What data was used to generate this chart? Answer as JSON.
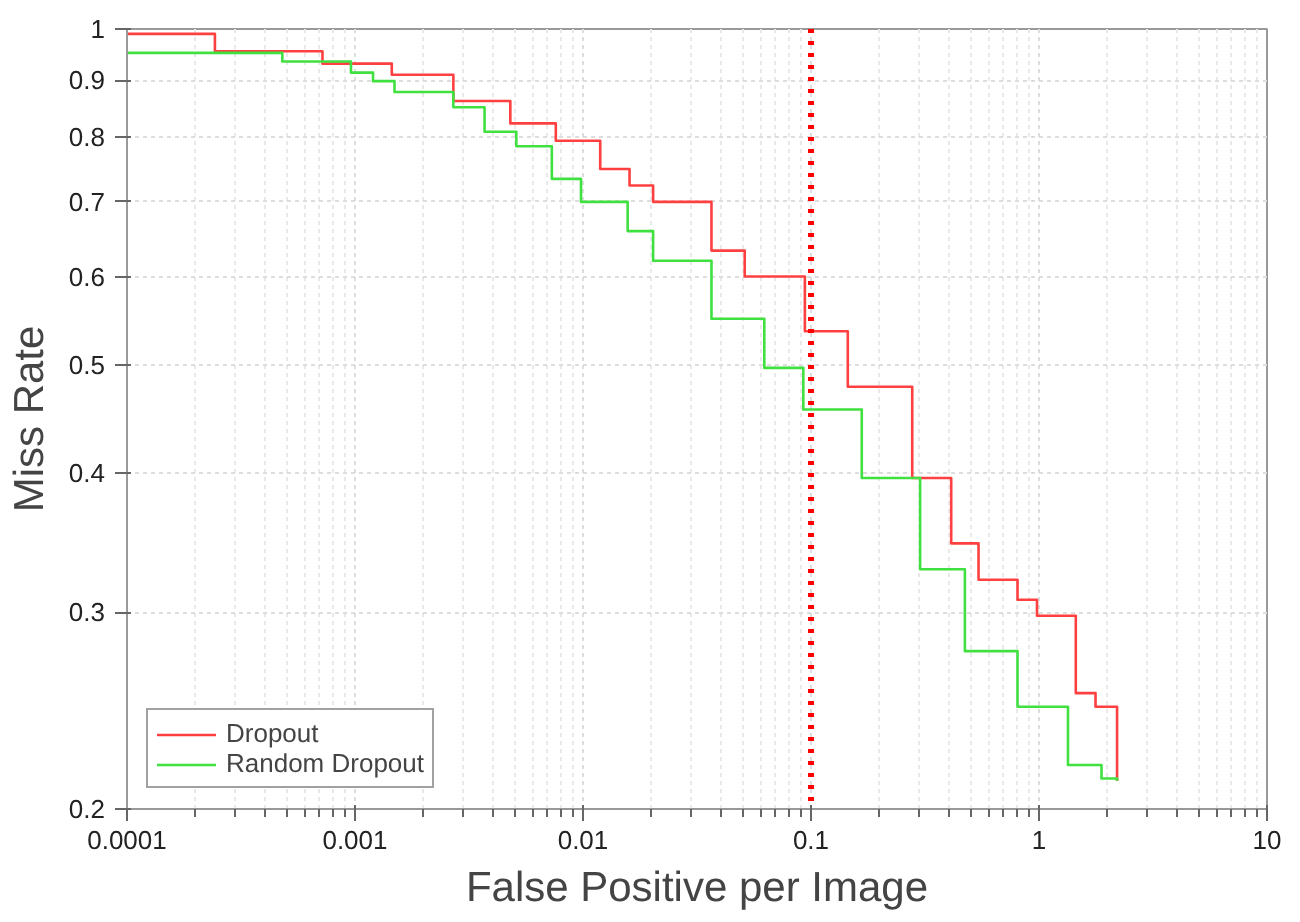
{
  "chart_data": {
    "type": "step",
    "xlabel": "False Positive per Image",
    "ylabel": "Miss Rate",
    "log": "xy",
    "xlim": [
      0.0001,
      10
    ],
    "ylim": [
      0.2,
      1
    ],
    "xticks": [
      0.0001,
      0.001,
      0.01,
      0.1,
      1,
      10
    ],
    "yticks": [
      0.2,
      0.3,
      0.4,
      0.5,
      0.6,
      0.7,
      0.8,
      0.9,
      1
    ],
    "grid": true,
    "legend": "bottom left",
    "line_style": "solid",
    "marker": "none",
    "series": [
      {
        "name": "Dropout",
        "color": "#ff4040",
        "x": [
          0.0001,
          0.000243,
          0.00072,
          0.00145,
          0.0027,
          0.0048,
          0.0076,
          0.0119,
          0.016,
          0.0203,
          0.0366,
          0.0512,
          0.094,
          0.145,
          0.278,
          0.412,
          0.543,
          0.805,
          0.98,
          1.45,
          1.77,
          2.2,
          2.2
        ],
        "values": [
          0.99,
          0.955,
          0.931,
          0.91,
          0.862,
          0.823,
          0.794,
          0.749,
          0.724,
          0.7,
          0.633,
          0.6,
          0.536,
          0.478,
          0.396,
          0.346,
          0.321,
          0.308,
          0.298,
          0.254,
          0.247,
          0.221,
          0.212
        ]
      },
      {
        "name": "Random Dropout",
        "color": "#40e040",
        "x": [
          0.0001,
          0.00048,
          0.00096,
          0.0012,
          0.00149,
          0.0027,
          0.0037,
          0.0051,
          0.0073,
          0.0098,
          0.0157,
          0.0203,
          0.0366,
          0.0624,
          0.0925,
          0.167,
          0.301,
          0.473,
          0.805,
          1.34,
          1.88,
          2.2
        ],
        "values": [
          0.952,
          0.935,
          0.914,
          0.898,
          0.878,
          0.851,
          0.809,
          0.785,
          0.734,
          0.7,
          0.659,
          0.62,
          0.55,
          0.497,
          0.456,
          0.396,
          0.328,
          0.277,
          0.247,
          0.219,
          0.213,
          0.212
        ]
      }
    ],
    "ref_lines": [
      {
        "axis": "x",
        "value": 0.1,
        "color": "#ff0000",
        "line_style": "dotted"
      }
    ]
  }
}
